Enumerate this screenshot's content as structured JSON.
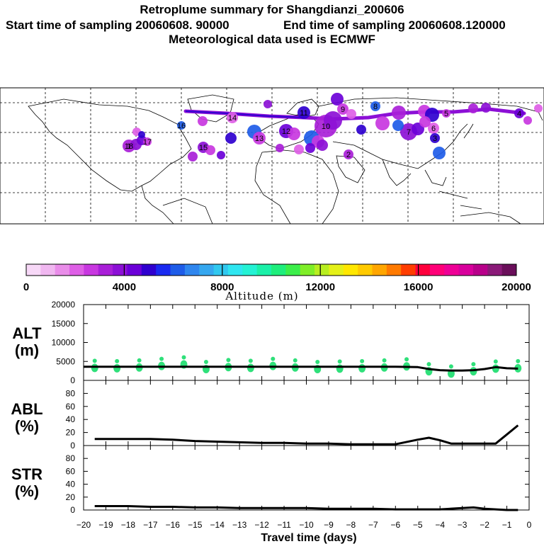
{
  "header": {
    "title": "Retroplume summary for Shangdianzi_200606",
    "start_text": "Start time of sampling 20060608. 90000",
    "end_text": "End time of sampling 20060608.120000",
    "met_text": "Meteorological data used is ECMWF"
  },
  "colorbar": {
    "title": "Altitude (m)",
    "tick_labels": [
      "0",
      "4000",
      "8000",
      "12000",
      "16000",
      "20000"
    ],
    "colors": [
      "#f7d8f7",
      "#f0b7f0",
      "#e98de9",
      "#de5fe6",
      "#c837e0",
      "#a91fd8",
      "#8c10d6",
      "#6b00d8",
      "#2f00cf",
      "#1a2af0",
      "#1e5ce8",
      "#2f86ee",
      "#35a7ef",
      "#30c8ef",
      "#2fe6f0",
      "#24f2d4",
      "#1bf0a8",
      "#1eee7c",
      "#3cee4a",
      "#7fee28",
      "#b8ee20",
      "#e4f018",
      "#ffe700",
      "#ffca00",
      "#ffa600",
      "#ff7a00",
      "#ff3d00",
      "#ff003c",
      "#ff0078",
      "#ee0096",
      "#d8009c",
      "#b8008a",
      "#8a1a78",
      "#6a0f5a"
    ]
  },
  "map": {
    "label": "Retroplume map"
  },
  "chart_data": [
    {
      "type": "line",
      "panel": "ALT",
      "ylabel": "ALT\n(m)",
      "ylabel_line1": "ALT",
      "ylabel_line2": "(m)",
      "ylim": [
        0,
        20000
      ],
      "yticks": [
        0,
        5000,
        10000,
        15000,
        20000
      ],
      "ytick_labels": [
        "0",
        "5000",
        "10000",
        "15000",
        "20000"
      ],
      "x": [
        -20,
        -19,
        -18,
        -17,
        -16,
        -15,
        -14,
        -13,
        -12,
        -11,
        -10,
        -9,
        -8,
        -7,
        -6,
        -5,
        -4.5,
        -4,
        -3.5,
        -3,
        -2.5,
        -2,
        -1.5,
        -1,
        -0.5
      ],
      "values": [
        3600,
        3600,
        3600,
        3600,
        3600,
        3600,
        3600,
        3600,
        3600,
        3600,
        3600,
        3600,
        3600,
        3600,
        3600,
        3500,
        3000,
        2700,
        2600,
        2600,
        2700,
        3000,
        3500,
        3200,
        3100
      ],
      "scatter": [
        {
          "x": -19.5,
          "y": 3300
        },
        {
          "x": -18.5,
          "y": 3200
        },
        {
          "x": -17.5,
          "y": 3400
        },
        {
          "x": -16.5,
          "y": 3800
        },
        {
          "x": -15.5,
          "y": 4200
        },
        {
          "x": -14.5,
          "y": 3000
        },
        {
          "x": -13.5,
          "y": 3500
        },
        {
          "x": -12.5,
          "y": 3300
        },
        {
          "x": -11.5,
          "y": 3800
        },
        {
          "x": -10.5,
          "y": 3400
        },
        {
          "x": -9.5,
          "y": 3000
        },
        {
          "x": -8.5,
          "y": 3100
        },
        {
          "x": -7.5,
          "y": 3200
        },
        {
          "x": -6.5,
          "y": 3400
        },
        {
          "x": -5.5,
          "y": 3700
        },
        {
          "x": -4.5,
          "y": 2400
        },
        {
          "x": -3.5,
          "y": 1800
        },
        {
          "x": -2.5,
          "y": 2400
        },
        {
          "x": -1.5,
          "y": 3100
        },
        {
          "x": -0.5,
          "y": 3200
        }
      ]
    },
    {
      "type": "line",
      "panel": "ABL",
      "ylabel_line1": "ABL",
      "ylabel_line2": "(%)",
      "ylim": [
        0,
        100
      ],
      "yticks": [
        0,
        20,
        40,
        60,
        80
      ],
      "ytick_labels": [
        "0",
        "20",
        "40",
        "60",
        "80"
      ],
      "x": [
        -19.5,
        -18,
        -17,
        -16,
        -15,
        -14,
        -13,
        -12,
        -11,
        -10,
        -9,
        -8,
        -7,
        -6.5,
        -6,
        -5,
        -4.5,
        -4,
        -3.5,
        -3,
        -2.5,
        -2,
        -1.5,
        -1,
        -0.5
      ],
      "values": [
        10,
        10,
        10,
        9,
        7,
        6,
        5,
        4,
        4,
        3,
        3,
        2,
        2,
        2,
        2,
        9,
        12,
        8,
        3,
        3,
        3,
        3,
        3,
        17,
        31
      ]
    },
    {
      "type": "line",
      "panel": "STR",
      "ylabel_line1": "STR",
      "ylabel_line2": "(%)",
      "ylim": [
        0,
        100
      ],
      "yticks": [
        0,
        20,
        40,
        60,
        80
      ],
      "ytick_labels": [
        "0",
        "20",
        "40",
        "60",
        "80"
      ],
      "x": [
        -19.5,
        -18,
        -17,
        -16,
        -15,
        -14,
        -13,
        -12,
        -11,
        -10,
        -9,
        -8,
        -7,
        -6,
        -5,
        -4,
        -3,
        -2.5,
        -2,
        -1.5,
        -1,
        -0.5
      ],
      "values": [
        6,
        6,
        5,
        5,
        4,
        4,
        3,
        3,
        3,
        3,
        2,
        2,
        2,
        1,
        1,
        1,
        3,
        4,
        2,
        1,
        0,
        0
      ]
    }
  ],
  "x_axis": {
    "title": "Travel time (days)",
    "ticks": [
      -20,
      -19,
      -18,
      -17,
      -16,
      -15,
      -14,
      -13,
      -12,
      -11,
      -10,
      -9,
      -8,
      -7,
      -6,
      -5,
      -4,
      -3,
      -2,
      -1,
      0
    ],
    "tick_labels": [
      "−20",
      "−19",
      "−18",
      "−17",
      "−16",
      "−15",
      "−14",
      "−13",
      "−12",
      "−11",
      "−10",
      "−9",
      "−8",
      "−7",
      "−6",
      "−5",
      "−4",
      "−3",
      "−2",
      "−1",
      "0"
    ],
    "xlim": [
      -20,
      0
    ]
  },
  "plume_markers": [
    {
      "label": "18",
      "color": "#6b00d8"
    },
    {
      "label": "17",
      "color": "#8c10d6"
    },
    {
      "label": "16",
      "color": "#c837e0"
    },
    {
      "label": "15",
      "color": "#a91fd8"
    },
    {
      "label": "14",
      "color": "#6b00d8"
    },
    {
      "label": "13",
      "color": "#8c10d6"
    },
    {
      "label": "12",
      "color": "#c837e0"
    },
    {
      "label": "11",
      "color": "#1e5ce8"
    },
    {
      "label": "10",
      "color": "#a91fd8"
    },
    {
      "label": "9",
      "color": "#8c10d6"
    },
    {
      "label": "8",
      "color": "#2f00cf"
    },
    {
      "label": "7",
      "color": "#c837e0"
    },
    {
      "label": "6",
      "color": "#a91fd8"
    },
    {
      "label": "5",
      "color": "#8c10d6"
    },
    {
      "label": "4",
      "color": "#6b00d8"
    },
    {
      "label": "3",
      "color": "#de5fe6"
    },
    {
      "label": "2",
      "color": "#c837e0"
    },
    {
      "label": "1",
      "color": "#a91fd8"
    }
  ]
}
